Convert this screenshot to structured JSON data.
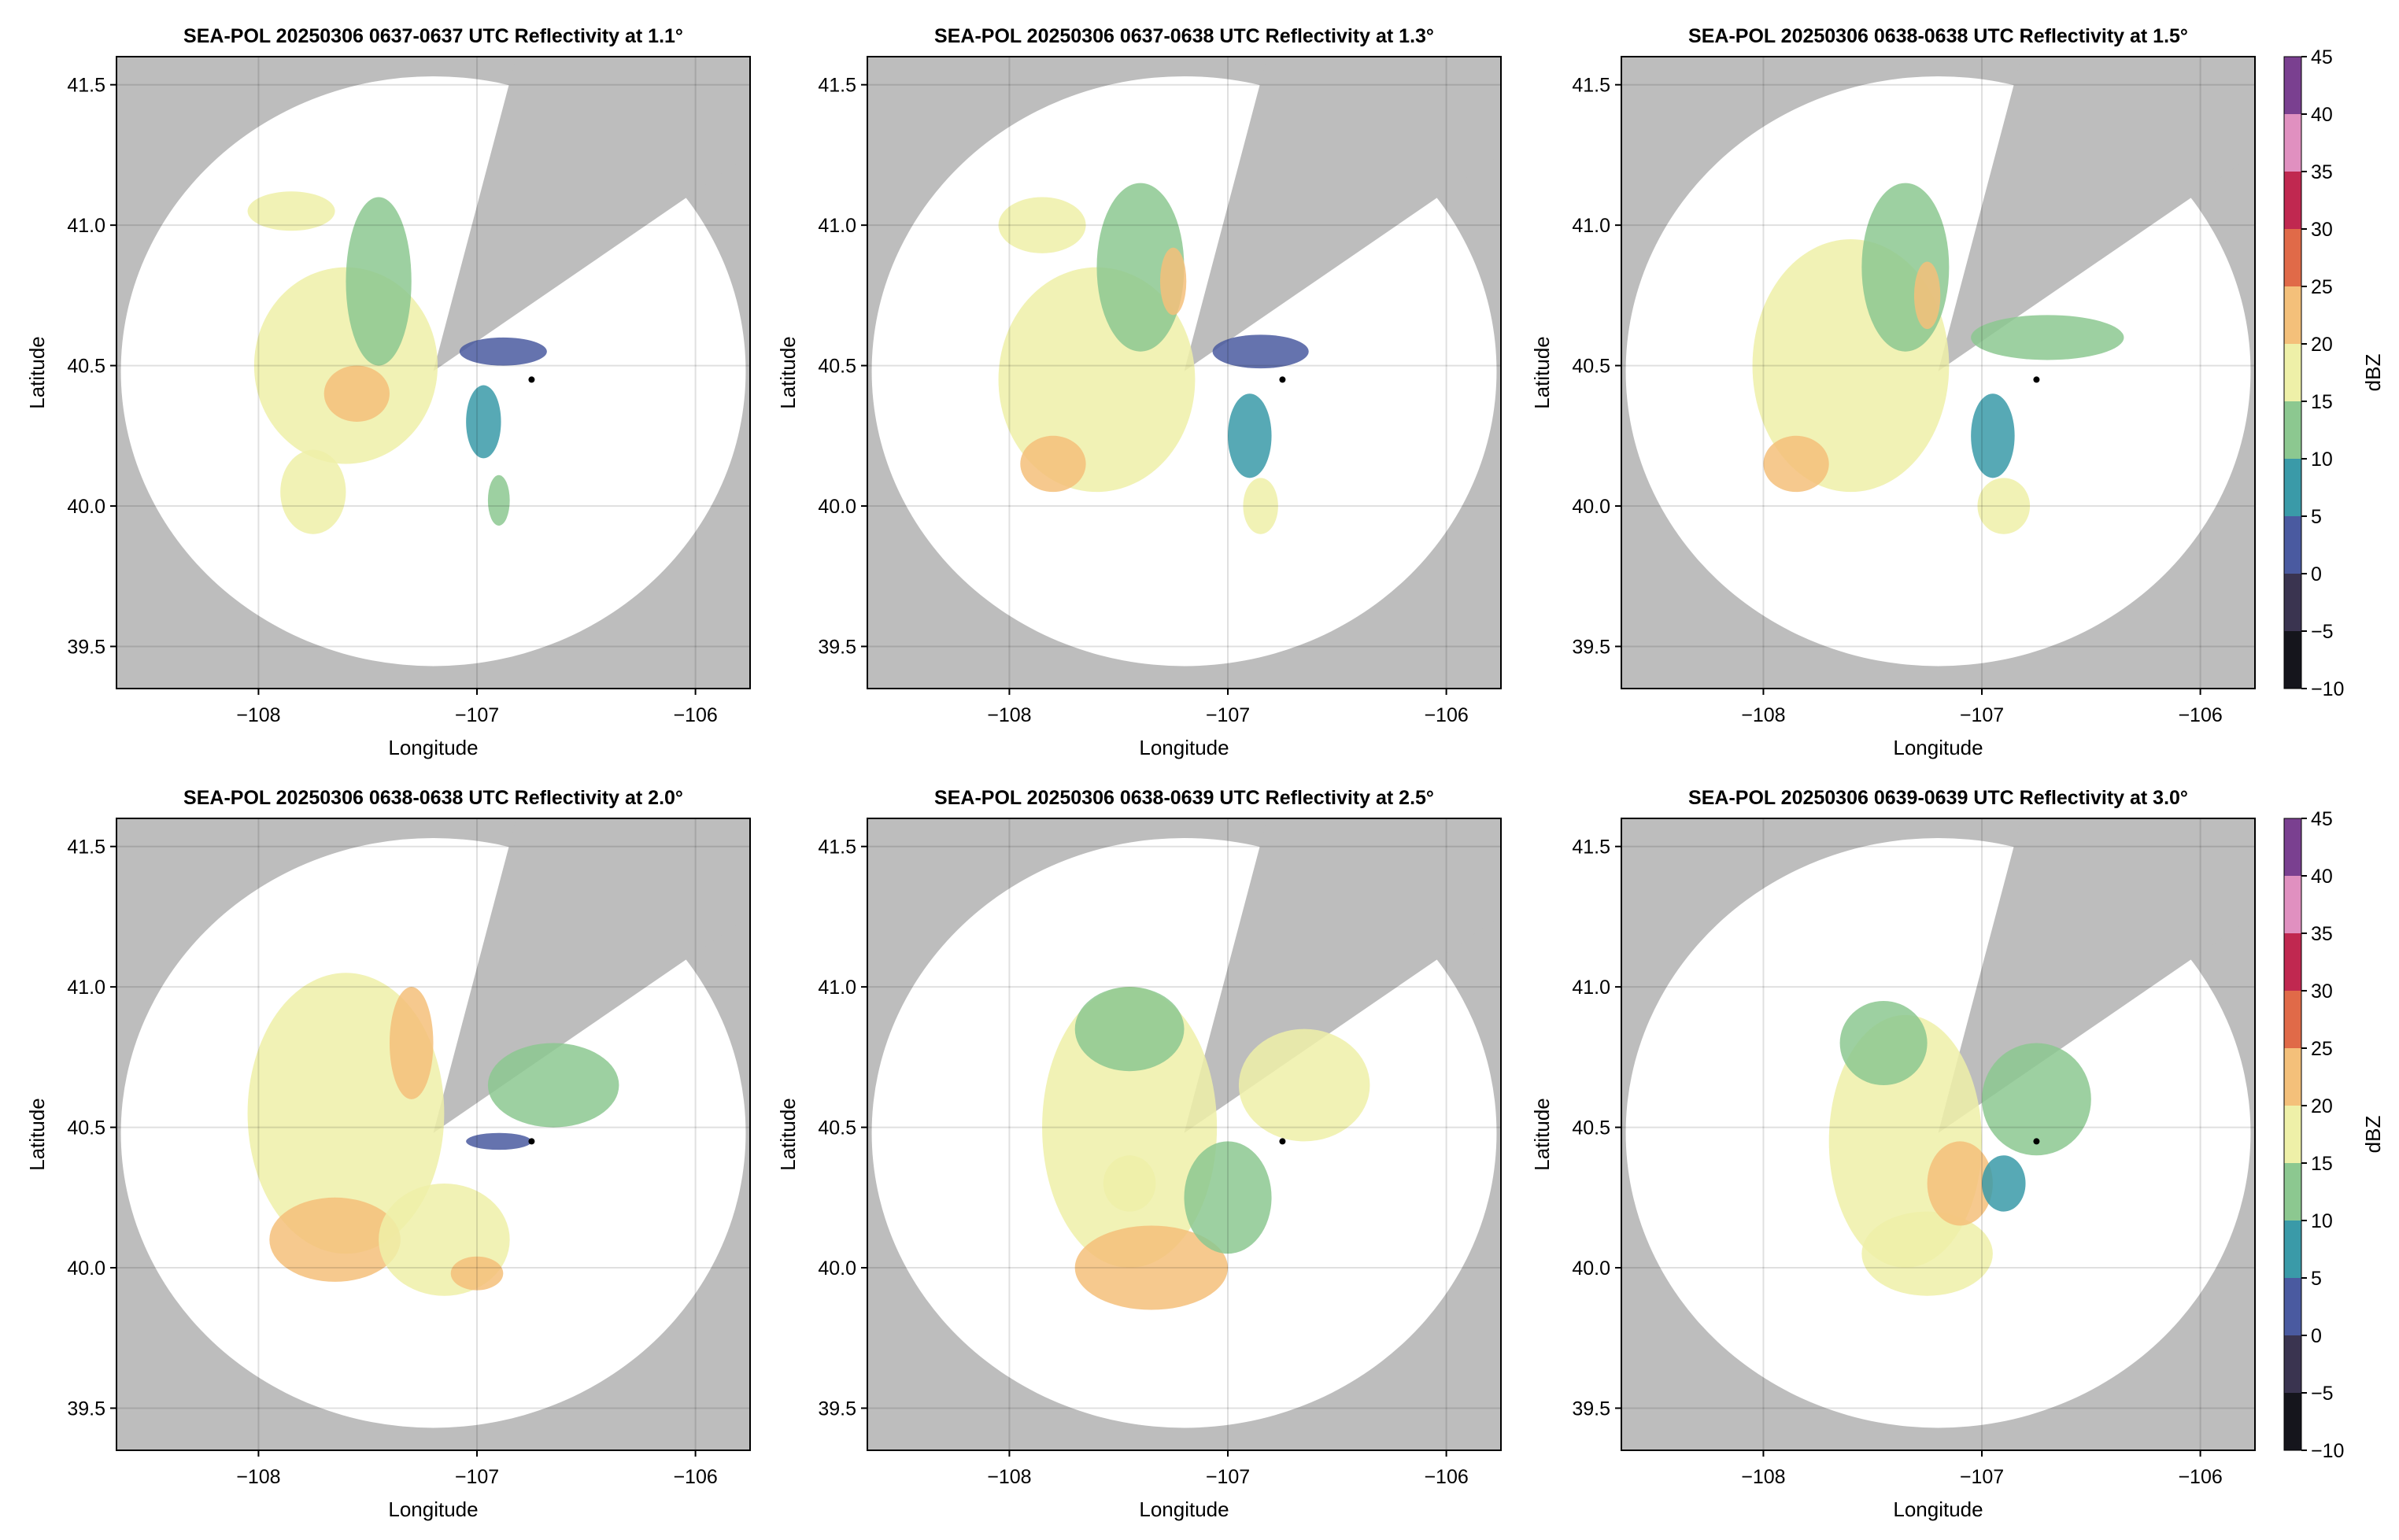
{
  "chart_data": [
    {
      "type": "radar",
      "title": "SEA-POL 20250306 0637-0637 UTC Reflectivity at 1.1°",
      "xlabel": "Longitude",
      "ylabel": "Latitude",
      "xlim": [
        -108.65,
        -105.75
      ],
      "ylim": [
        39.35,
        41.6
      ],
      "xticks": [
        {
          "value": -108,
          "label": "−108"
        },
        {
          "value": -107,
          "label": "−107"
        },
        {
          "value": -106,
          "label": "−106"
        }
      ],
      "yticks": [
        39.5,
        {
          "value": 40,
          "label": "40.0"
        },
        40.5,
        {
          "value": 41,
          "label": "41.0"
        },
        41.5
      ],
      "grid": true,
      "coverage": {
        "center": [
          -107.2,
          40.48
        ],
        "radius": [
          1.43,
          1.05
        ],
        "blocked_azimuth": [
          14,
          54
        ]
      },
      "site": [
        -106.75,
        40.45
      ],
      "echoes": [
        {
          "lon": -107.6,
          "lat": 40.5,
          "rx": 0.42,
          "ry": 0.35,
          "dbz": 15
        },
        {
          "lon": -107.45,
          "lat": 40.8,
          "rx": 0.15,
          "ry": 0.3,
          "dbz": 13
        },
        {
          "lon": -107.55,
          "lat": 40.4,
          "rx": 0.15,
          "ry": 0.1,
          "dbz": 20
        },
        {
          "lon": -107.85,
          "lat": 41.05,
          "rx": 0.2,
          "ry": 0.07,
          "dbz": 15
        },
        {
          "lon": -106.88,
          "lat": 40.55,
          "rx": 0.2,
          "ry": 0.05,
          "dbz": 3
        },
        {
          "lon": -106.97,
          "lat": 40.3,
          "rx": 0.08,
          "ry": 0.13,
          "dbz": 5
        },
        {
          "lon": -106.9,
          "lat": 40.02,
          "rx": 0.05,
          "ry": 0.09,
          "dbz": 12
        },
        {
          "lon": -107.75,
          "lat": 40.05,
          "rx": 0.15,
          "ry": 0.15,
          "dbz": 16
        }
      ]
    },
    {
      "type": "radar",
      "title": "SEA-POL 20250306 0637-0638 UTC Reflectivity at 1.3°",
      "xlabel": "Longitude",
      "ylabel": "Latitude",
      "xlim": [
        -108.65,
        -105.75
      ],
      "ylim": [
        39.35,
        41.6
      ],
      "xticks": [
        {
          "value": -108,
          "label": "−108"
        },
        {
          "value": -107,
          "label": "−107"
        },
        {
          "value": -106,
          "label": "−106"
        }
      ],
      "yticks": [
        39.5,
        {
          "value": 40,
          "label": "40.0"
        },
        40.5,
        {
          "value": 41,
          "label": "41.0"
        },
        41.5
      ],
      "grid": true,
      "coverage": {
        "center": [
          -107.2,
          40.48
        ],
        "radius": [
          1.43,
          1.05
        ],
        "blocked_azimuth": [
          14,
          54
        ]
      },
      "site": [
        -106.75,
        40.45
      ],
      "echoes": [
        {
          "lon": -107.6,
          "lat": 40.45,
          "rx": 0.45,
          "ry": 0.4,
          "dbz": 15
        },
        {
          "lon": -107.4,
          "lat": 40.85,
          "rx": 0.2,
          "ry": 0.3,
          "dbz": 13
        },
        {
          "lon": -107.8,
          "lat": 40.15,
          "rx": 0.15,
          "ry": 0.1,
          "dbz": 21
        },
        {
          "lon": -107.85,
          "lat": 41.0,
          "rx": 0.2,
          "ry": 0.1,
          "dbz": 15
        },
        {
          "lon": -106.85,
          "lat": 40.55,
          "rx": 0.22,
          "ry": 0.06,
          "dbz": 4
        },
        {
          "lon": -106.9,
          "lat": 40.25,
          "rx": 0.1,
          "ry": 0.15,
          "dbz": 8
        },
        {
          "lon": -106.85,
          "lat": 40.0,
          "rx": 0.08,
          "ry": 0.1,
          "dbz": 17
        },
        {
          "lon": -107.25,
          "lat": 40.8,
          "rx": 0.06,
          "ry": 0.12,
          "dbz": 21
        }
      ]
    },
    {
      "type": "radar",
      "title": "SEA-POL 20250306 0638-0638 UTC Reflectivity at 1.5°",
      "xlabel": "Longitude",
      "ylabel": "Latitude",
      "xlim": [
        -108.65,
        -105.75
      ],
      "ylim": [
        39.35,
        41.6
      ],
      "xticks": [
        {
          "value": -108,
          "label": "−108"
        },
        {
          "value": -107,
          "label": "−107"
        },
        {
          "value": -106,
          "label": "−106"
        }
      ],
      "yticks": [
        39.5,
        {
          "value": 40,
          "label": "40.0"
        },
        40.5,
        {
          "value": 41,
          "label": "41.0"
        },
        41.5
      ],
      "grid": true,
      "coverage": {
        "center": [
          -107.2,
          40.48
        ],
        "radius": [
          1.43,
          1.05
        ],
        "blocked_azimuth": [
          14,
          54
        ]
      },
      "site": [
        -106.75,
        40.45
      ],
      "echoes": [
        {
          "lon": -107.6,
          "lat": 40.5,
          "rx": 0.45,
          "ry": 0.45,
          "dbz": 15
        },
        {
          "lon": -107.35,
          "lat": 40.85,
          "rx": 0.2,
          "ry": 0.3,
          "dbz": 13
        },
        {
          "lon": -107.85,
          "lat": 40.15,
          "rx": 0.15,
          "ry": 0.1,
          "dbz": 21
        },
        {
          "lon": -106.7,
          "lat": 40.6,
          "rx": 0.35,
          "ry": 0.08,
          "dbz": 13
        },
        {
          "lon": -106.95,
          "lat": 40.25,
          "rx": 0.1,
          "ry": 0.15,
          "dbz": 6
        },
        {
          "lon": -106.9,
          "lat": 40.0,
          "rx": 0.12,
          "ry": 0.1,
          "dbz": 18
        },
        {
          "lon": -107.25,
          "lat": 40.75,
          "rx": 0.06,
          "ry": 0.12,
          "dbz": 22
        }
      ]
    },
    {
      "type": "radar",
      "title": "SEA-POL 20250306 0638-0638 UTC Reflectivity at 2.0°",
      "xlabel": "Longitude",
      "ylabel": "Latitude",
      "xlim": [
        -108.65,
        -105.75
      ],
      "ylim": [
        39.35,
        41.6
      ],
      "xticks": [
        {
          "value": -108,
          "label": "−108"
        },
        {
          "value": -107,
          "label": "−107"
        },
        {
          "value": -106,
          "label": "−106"
        }
      ],
      "yticks": [
        39.5,
        {
          "value": 40,
          "label": "40.0"
        },
        40.5,
        {
          "value": 41,
          "label": "41.0"
        },
        41.5
      ],
      "grid": true,
      "coverage": {
        "center": [
          -107.2,
          40.48
        ],
        "radius": [
          1.43,
          1.05
        ],
        "blocked_azimuth": [
          14,
          54
        ]
      },
      "site": [
        -106.75,
        40.45
      ],
      "echoes": [
        {
          "lon": -107.6,
          "lat": 40.55,
          "rx": 0.45,
          "ry": 0.5,
          "dbz": 15
        },
        {
          "lon": -107.65,
          "lat": 40.1,
          "rx": 0.3,
          "ry": 0.15,
          "dbz": 20
        },
        {
          "lon": -107.15,
          "lat": 40.1,
          "rx": 0.3,
          "ry": 0.2,
          "dbz": 16
        },
        {
          "lon": -106.65,
          "lat": 40.65,
          "rx": 0.3,
          "ry": 0.15,
          "dbz": 14
        },
        {
          "lon": -107.3,
          "lat": 40.8,
          "rx": 0.1,
          "ry": 0.2,
          "dbz": 21
        },
        {
          "lon": -107.0,
          "lat": 39.98,
          "rx": 0.12,
          "ry": 0.06,
          "dbz": 22
        },
        {
          "lon": -106.9,
          "lat": 40.45,
          "rx": 0.15,
          "ry": 0.03,
          "dbz": 2
        }
      ]
    },
    {
      "type": "radar",
      "title": "SEA-POL 20250306 0638-0639 UTC Reflectivity at 2.5°",
      "xlabel": "Longitude",
      "ylabel": "Latitude",
      "xlim": [
        -108.65,
        -105.75
      ],
      "ylim": [
        39.35,
        41.6
      ],
      "xticks": [
        {
          "value": -108,
          "label": "−108"
        },
        {
          "value": -107,
          "label": "−107"
        },
        {
          "value": -106,
          "label": "−106"
        }
      ],
      "yticks": [
        39.5,
        {
          "value": 40,
          "label": "40.0"
        },
        40.5,
        {
          "value": 41,
          "label": "41.0"
        },
        41.5
      ],
      "grid": true,
      "coverage": {
        "center": [
          -107.2,
          40.48
        ],
        "radius": [
          1.43,
          1.05
        ],
        "blocked_azimuth": [
          14,
          54
        ]
      },
      "site": [
        -106.75,
        40.45
      ],
      "echoes": [
        {
          "lon": -107.45,
          "lat": 40.5,
          "rx": 0.4,
          "ry": 0.5,
          "dbz": 15
        },
        {
          "lon": -107.35,
          "lat": 40.0,
          "rx": 0.35,
          "ry": 0.15,
          "dbz": 21
        },
        {
          "lon": -107.0,
          "lat": 40.25,
          "rx": 0.2,
          "ry": 0.2,
          "dbz": 13
        },
        {
          "lon": -106.65,
          "lat": 40.65,
          "rx": 0.3,
          "ry": 0.2,
          "dbz": 15
        },
        {
          "lon": -107.45,
          "lat": 40.85,
          "rx": 0.25,
          "ry": 0.15,
          "dbz": 11
        },
        {
          "lon": -107.45,
          "lat": 40.3,
          "rx": 0.12,
          "ry": 0.1,
          "dbz": 19
        }
      ]
    },
    {
      "type": "radar",
      "title": "SEA-POL 20250306 0639-0639 UTC Reflectivity at 3.0°",
      "xlabel": "Longitude",
      "ylabel": "Latitude",
      "xlim": [
        -108.65,
        -105.75
      ],
      "ylim": [
        39.35,
        41.6
      ],
      "xticks": [
        {
          "value": -108,
          "label": "−108"
        },
        {
          "value": -107,
          "label": "−107"
        },
        {
          "value": -106,
          "label": "−106"
        }
      ],
      "yticks": [
        39.5,
        {
          "value": 40,
          "label": "40.0"
        },
        40.5,
        {
          "value": 41,
          "label": "41.0"
        },
        41.5
      ],
      "grid": true,
      "coverage": {
        "center": [
          -107.2,
          40.48
        ],
        "radius": [
          1.43,
          1.05
        ],
        "blocked_azimuth": [
          14,
          54
        ]
      },
      "site": [
        -106.75,
        40.45
      ],
      "echoes": [
        {
          "lon": -107.35,
          "lat": 40.45,
          "rx": 0.35,
          "ry": 0.45,
          "dbz": 15
        },
        {
          "lon": -107.25,
          "lat": 40.05,
          "rx": 0.3,
          "ry": 0.15,
          "dbz": 19
        },
        {
          "lon": -107.1,
          "lat": 40.3,
          "rx": 0.15,
          "ry": 0.15,
          "dbz": 20
        },
        {
          "lon": -106.75,
          "lat": 40.6,
          "rx": 0.25,
          "ry": 0.2,
          "dbz": 13
        },
        {
          "lon": -107.45,
          "lat": 40.8,
          "rx": 0.2,
          "ry": 0.15,
          "dbz": 11
        },
        {
          "lon": -106.9,
          "lat": 40.3,
          "rx": 0.1,
          "ry": 0.1,
          "dbz": 9
        }
      ]
    }
  ],
  "colorbar": {
    "label": "dBZ",
    "clim": [
      -10,
      45
    ],
    "ticks": [
      {
        "value": -10,
        "label": "−10"
      },
      {
        "value": -5,
        "label": "−5"
      },
      0,
      5,
      10,
      15,
      20,
      25,
      30,
      35,
      40,
      45
    ],
    "colors": [
      "#15151c",
      "#3a3450",
      "#4a5aa0",
      "#3a9aa8",
      "#8cc890",
      "#eef0a8",
      "#f4c07a",
      "#e06a48",
      "#c02850",
      "#e090c0",
      "#7a4090"
    ]
  }
}
